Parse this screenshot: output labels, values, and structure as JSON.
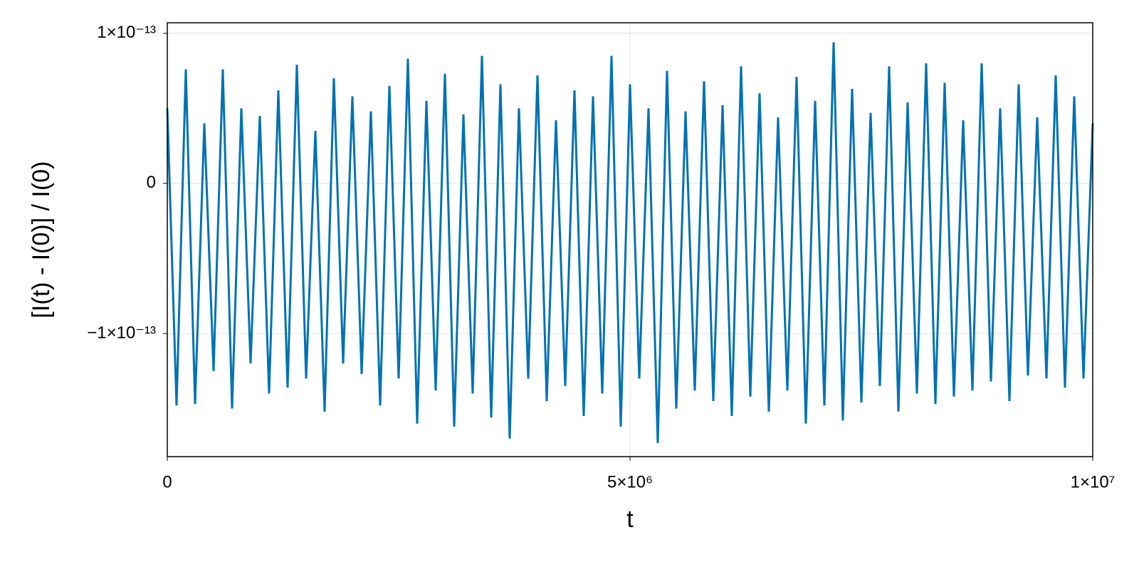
{
  "chart_data": {
    "type": "line",
    "xlabel": "t",
    "ylabel": "[I(t) - I(0)] / I(0)",
    "color": "#0072b2",
    "grid": true,
    "xlim": [
      0,
      10000000
    ],
    "xticks": [
      0,
      {
        "value": 5000000,
        "label": "5×10⁶"
      },
      {
        "value": 10000000,
        "label": "1×10⁷"
      }
    ],
    "ylim": [
      -1.82e-13,
      1.07e-13
    ],
    "yticks": [
      {
        "value": -1e-13,
        "label": "−1×10⁻¹³"
      },
      0,
      {
        "value": 1e-13,
        "label": "1×10⁻¹³"
      }
    ],
    "x": [
      0,
      100000,
      200000,
      300000,
      400000,
      500000,
      600000,
      700000,
      800000,
      900000,
      1000000,
      1100000,
      1200000,
      1300000,
      1400000,
      1500000,
      1600000,
      1700000,
      1800000,
      1900000,
      2000000,
      2100000,
      2200000,
      2300000,
      2400000,
      2500000,
      2600000,
      2700000,
      2800000,
      2900000,
      3000000,
      3100000,
      3200000,
      3300000,
      3400000,
      3500000,
      3600000,
      3700000,
      3800000,
      3900000,
      4000000,
      4100000,
      4200000,
      4300000,
      4400000,
      4500000,
      4600000,
      4700000,
      4800000,
      4900000,
      5000000,
      5100000,
      5200000,
      5300000,
      5400000,
      5500000,
      5600000,
      5700000,
      5800000,
      5900000,
      6000000,
      6100000,
      6200000,
      6300000,
      6400000,
      6500000,
      6600000,
      6700000,
      6800000,
      6900000,
      7000000,
      7100000,
      7200000,
      7300000,
      7400000,
      7500000,
      7600000,
      7700000,
      7800000,
      7900000,
      8000000,
      8100000,
      8200000,
      8300000,
      8400000,
      8500000,
      8600000,
      8700000,
      8800000,
      8900000,
      9000000,
      9100000,
      9200000,
      9300000,
      9400000,
      9500000,
      9600000,
      9700000,
      9800000,
      9900000,
      10000000
    ],
    "values": [
      5e-14,
      -1.48e-13,
      7.6e-14,
      -1.47e-13,
      4e-14,
      -1.25e-13,
      7.6e-14,
      -1.5e-13,
      5e-14,
      -1.2e-13,
      4.5e-14,
      -1.4e-13,
      6.2e-14,
      -1.36e-13,
      7.9e-14,
      -1.3e-13,
      3.5e-14,
      -1.52e-13,
      7e-14,
      -1.2e-13,
      5.8e-14,
      -1.27e-13,
      4.8e-14,
      -1.48e-13,
      6.5e-14,
      -1.3e-13,
      8.3e-14,
      -1.6e-13,
      5.5e-14,
      -1.38e-13,
      7.3e-14,
      -1.62e-13,
      4.6e-14,
      -1.4e-13,
      8.5e-14,
      -1.56e-13,
      6.6e-14,
      -1.7e-13,
      5e-14,
      -1.3e-13,
      7.2e-14,
      -1.45e-13,
      4.2e-14,
      -1.35e-13,
      6.2e-14,
      -1.55e-13,
      5.8e-14,
      -1.4e-13,
      8.5e-14,
      -1.62e-13,
      6.6e-14,
      -1.3e-13,
      5e-14,
      -1.73e-13,
      7.5e-14,
      -1.5e-13,
      4.8e-14,
      -1.38e-13,
      6.8e-14,
      -1.45e-13,
      5.2e-14,
      -1.55e-13,
      7.8e-14,
      -1.42e-13,
      6e-14,
      -1.52e-13,
      4.4e-14,
      -1.38e-13,
      7.1e-14,
      -1.6e-13,
      5.5e-14,
      -1.48e-13,
      9.4e-14,
      -1.58e-13,
      6.3e-14,
      -1.46e-13,
      4.7e-14,
      -1.35e-13,
      7.8e-14,
      -1.52e-13,
      5.4e-14,
      -1.4e-13,
      8e-14,
      -1.47e-13,
      6.7e-14,
      -1.42e-13,
      4.2e-14,
      -1.38e-13,
      8e-14,
      -1.32e-13,
      5e-14,
      -1.45e-13,
      6.6e-14,
      -1.28e-13,
      4.4e-14,
      -1.3e-13,
      7.2e-14,
      -1.36e-13,
      5.8e-14,
      -1.3e-13,
      4e-14
    ]
  }
}
